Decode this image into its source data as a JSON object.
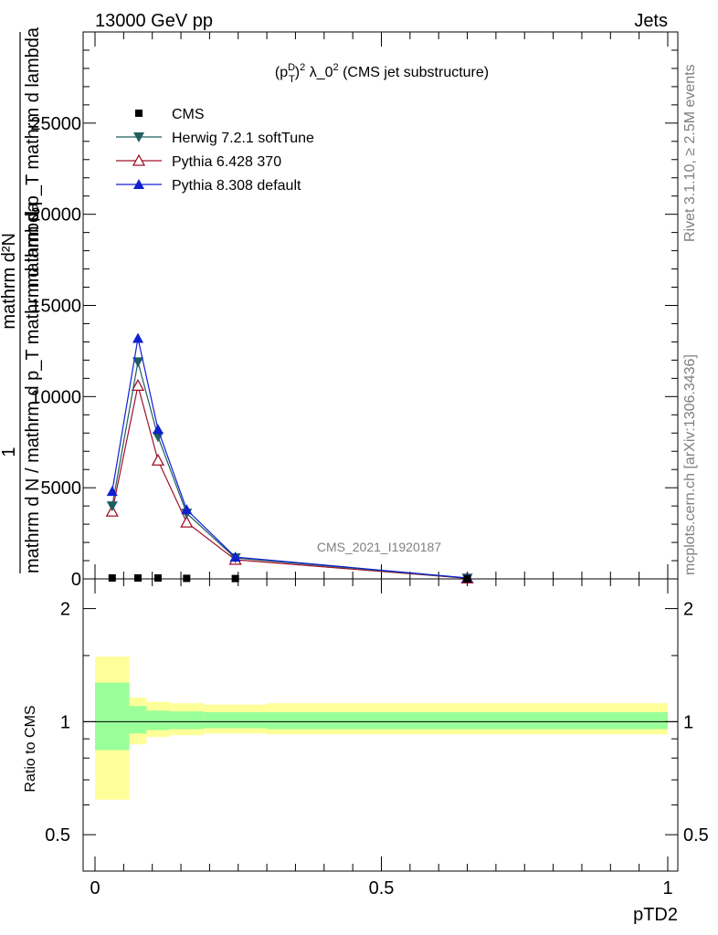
{
  "header": {
    "left": "13000 GeV pp",
    "right": "Jets"
  },
  "side_labels": {
    "rivet": "Rivet 3.1.10, ≥ 2.5M events",
    "mcplots": "mcplots.cern.ch [arXiv:1306.3436]"
  },
  "chart_data": [
    {
      "type": "line",
      "panel": "main",
      "title": "(p_T^D)^2 λ_0^2 (CMS jet substructure)",
      "title_parts": {
        "prefix": "(p",
        "sup1": "D",
        "sub": "T",
        "close": ")",
        "sup2": "2",
        "middle": " λ_0",
        "sup3": "2",
        "suffix": " (CMS jet substructure)"
      },
      "watermark": "CMS_2021_I1920187",
      "ylabel_lines": [
        "1",
        "mathrm d N / mathrm d p_T mathrm d lambda",
        "mathrm d²N",
        "mathrm d p_T mathrm d lambda"
      ],
      "xlim": [
        -0.02,
        1.02
      ],
      "ylim": [
        0,
        30000
      ],
      "yticks": [
        0,
        5000,
        10000,
        15000,
        20000,
        25000
      ],
      "ytick_labels": [
        "0",
        "5000",
        "10000",
        "15000",
        "20000",
        "25000"
      ],
      "x": [
        0.03,
        0.075,
        0.11,
        0.16,
        0.245,
        0.65
      ],
      "series": [
        {
          "name": "CMS",
          "marker": "square",
          "color": "#000000",
          "values": [
            50,
            50,
            50,
            30,
            20,
            5
          ]
        },
        {
          "name": "Herwig 7.2.1 softTune",
          "marker": "triangle-down",
          "color": "#1f5f5f",
          "values": [
            4000,
            11900,
            7800,
            3600,
            1150,
            40
          ]
        },
        {
          "name": "Pythia 6.428 370",
          "marker": "triangle-open",
          "color": "#a0102a",
          "values": [
            3700,
            10600,
            6500,
            3100,
            1050,
            30
          ]
        },
        {
          "name": "Pythia 8.308 default",
          "marker": "triangle-up",
          "color": "#1020d0",
          "values": [
            4800,
            13200,
            8200,
            3800,
            1200,
            50
          ]
        }
      ]
    },
    {
      "type": "band",
      "panel": "ratio",
      "ylabel": "Ratio to CMS",
      "xlabel": "pTD2",
      "ylim": [
        0.4,
        2.4
      ],
      "ytick_labels": [
        "0.5",
        "1",
        "2"
      ],
      "yticks": [
        0.5,
        1,
        2
      ],
      "xticks": [
        0,
        0.5,
        1
      ],
      "xtick_labels": [
        "0",
        "0.5",
        "1"
      ],
      "bins": [
        0,
        0.06,
        0.09,
        0.13,
        0.19,
        0.3,
        1.0
      ],
      "stat_band": [
        [
          0.84,
          1.27
        ],
        [
          0.93,
          1.1
        ],
        [
          0.95,
          1.07
        ],
        [
          0.955,
          1.065
        ],
        [
          0.96,
          1.06
        ],
        [
          0.955,
          1.06
        ]
      ],
      "total_band": [
        [
          0.62,
          1.49
        ],
        [
          0.87,
          1.16
        ],
        [
          0.91,
          1.13
        ],
        [
          0.92,
          1.12
        ],
        [
          0.93,
          1.11
        ],
        [
          0.925,
          1.12
        ]
      ]
    }
  ]
}
